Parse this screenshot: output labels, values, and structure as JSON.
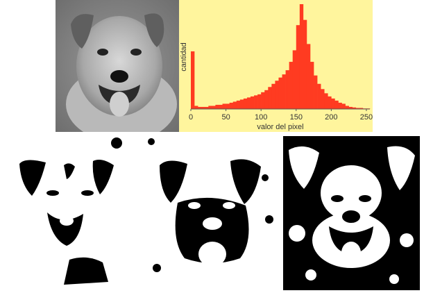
{
  "chart_data": {
    "type": "histogram",
    "xlabel": "valor del pixel",
    "ylabel": "cantidad",
    "xlim": [
      0,
      255
    ],
    "xticks": [
      0,
      50,
      100,
      150,
      200,
      250
    ],
    "ylim": [
      0,
      1
    ],
    "grid": false,
    "bar_color": "#ff3b21",
    "background_color": "#fff59d",
    "x": [
      0,
      5,
      10,
      15,
      20,
      25,
      30,
      35,
      40,
      45,
      50,
      55,
      60,
      65,
      70,
      75,
      80,
      85,
      90,
      95,
      100,
      105,
      110,
      115,
      120,
      125,
      130,
      135,
      140,
      145,
      150,
      155,
      160,
      165,
      170,
      175,
      180,
      185,
      190,
      195,
      200,
      205,
      210,
      215,
      220,
      225,
      230,
      235,
      240,
      245,
      250,
      255
    ],
    "values": [
      0.55,
      0.03,
      0.02,
      0.02,
      0.02,
      0.03,
      0.03,
      0.04,
      0.04,
      0.05,
      0.05,
      0.06,
      0.07,
      0.08,
      0.09,
      0.1,
      0.11,
      0.12,
      0.13,
      0.14,
      0.16,
      0.18,
      0.21,
      0.24,
      0.27,
      0.3,
      0.33,
      0.37,
      0.45,
      0.56,
      0.8,
      1.0,
      0.85,
      0.62,
      0.45,
      0.32,
      0.24,
      0.19,
      0.15,
      0.12,
      0.1,
      0.08,
      0.06,
      0.05,
      0.03,
      0.02,
      0.015,
      0.01,
      0.01,
      0.005,
      0.005,
      0.0
    ]
  },
  "images": {
    "original": {
      "icon": "grayscale-dog-photo"
    },
    "thresholds": [
      {
        "icon": "binary-dog-low-threshold"
      },
      {
        "icon": "binary-dog-mid-threshold"
      },
      {
        "icon": "binary-dog-high-threshold"
      }
    ]
  }
}
